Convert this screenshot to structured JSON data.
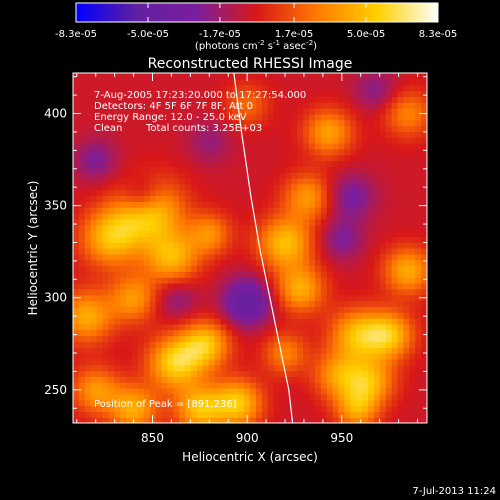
{
  "chart_data": {
    "type": "heatmap",
    "title": "Reconstructed RHESSI Image",
    "xlabel": "Heliocentric X (arcsec)",
    "ylabel": "Heliocentric Y (arcsec)",
    "xlim": [
      808,
      995
    ],
    "ylim": [
      232,
      422
    ],
    "x_ticks": [
      850,
      900,
      950
    ],
    "y_ticks": [
      250,
      300,
      350,
      400
    ],
    "colorbar": {
      "range": [
        -8.3e-05,
        8.3e-05
      ],
      "tick_labels": [
        "-8.3e-05",
        "-5.0e-05",
        "-1.7e-05",
        "1.7e-05",
        "5.0e-05",
        "8.3e-05"
      ],
      "unit_label": "(photons cm",
      "unit_exp1": "-2",
      "unit_mid": " s",
      "unit_exp2": "-1",
      "unit_mid2": " asec",
      "unit_exp3": "-2",
      "unit_end": ")",
      "colors": [
        "#0000ff",
        "#6020a0",
        "#7a1e9e",
        "#d81818",
        "#ff7a00",
        "#ffd000",
        "#ffffff"
      ]
    },
    "annotations": {
      "time_range": "7-Aug-2005 17:23:20.000 to 17:27:54.000",
      "detectors": "Detectors: 4F 5F 6F 7F 8F, Att 0",
      "energy": "Energy Range: 12.0 - 25.0 keV",
      "clean_label": "Clean",
      "total_counts": "Total counts: 3.25E+03",
      "peak": "Position of Peak = [891,236]"
    },
    "limb_curve": [
      [
        893,
        422
      ],
      [
        897,
        390
      ],
      [
        902,
        355
      ],
      [
        907,
        325
      ],
      [
        912,
        300
      ],
      [
        917,
        275
      ],
      [
        922,
        250
      ],
      [
        924,
        232
      ]
    ],
    "grid": false,
    "footer_date": "7-Jul-2013 11:24",
    "blobs": [
      {
        "x": 848,
        "y": 348,
        "v": 1.0,
        "s": 12
      },
      {
        "x": 828,
        "y": 333,
        "v": 0.8,
        "s": 11
      },
      {
        "x": 860,
        "y": 322,
        "v": 0.75,
        "s": 10
      },
      {
        "x": 815,
        "y": 290,
        "v": 0.7,
        "s": 10
      },
      {
        "x": 840,
        "y": 300,
        "v": 0.6,
        "s": 9
      },
      {
        "x": 862,
        "y": 265,
        "v": 0.9,
        "s": 10
      },
      {
        "x": 878,
        "y": 275,
        "v": 0.8,
        "s": 9
      },
      {
        "x": 820,
        "y": 250,
        "v": 0.6,
        "s": 9
      },
      {
        "x": 840,
        "y": 240,
        "v": 0.7,
        "s": 9
      },
      {
        "x": 875,
        "y": 240,
        "v": 0.8,
        "s": 9
      },
      {
        "x": 895,
        "y": 243,
        "v": 0.85,
        "s": 9
      },
      {
        "x": 920,
        "y": 330,
        "v": 0.8,
        "s": 10
      },
      {
        "x": 928,
        "y": 305,
        "v": 0.7,
        "s": 9
      },
      {
        "x": 932,
        "y": 355,
        "v": 0.6,
        "s": 9
      },
      {
        "x": 943,
        "y": 390,
        "v": 0.65,
        "s": 9
      },
      {
        "x": 958,
        "y": 280,
        "v": 0.75,
        "s": 10
      },
      {
        "x": 975,
        "y": 280,
        "v": 0.8,
        "s": 9
      },
      {
        "x": 965,
        "y": 255,
        "v": 0.7,
        "s": 9
      },
      {
        "x": 948,
        "y": 258,
        "v": 0.6,
        "s": 9
      },
      {
        "x": 985,
        "y": 315,
        "v": 0.7,
        "s": 9
      },
      {
        "x": 920,
        "y": 270,
        "v": 0.5,
        "s": 8
      },
      {
        "x": 985,
        "y": 400,
        "v": 0.5,
        "s": 9
      },
      {
        "x": 900,
        "y": 405,
        "v": 0.4,
        "s": 8
      },
      {
        "x": 880,
        "y": 335,
        "v": 0.55,
        "s": 8
      },
      {
        "x": 958,
        "y": 240,
        "v": 0.65,
        "s": 8
      },
      {
        "x": 845,
        "y": 355,
        "v": -0.6,
        "s": 8
      },
      {
        "x": 820,
        "y": 375,
        "v": -0.35,
        "s": 8
      },
      {
        "x": 900,
        "y": 298,
        "v": -0.7,
        "s": 9
      },
      {
        "x": 955,
        "y": 355,
        "v": -0.4,
        "s": 9
      },
      {
        "x": 950,
        "y": 332,
        "v": -0.35,
        "s": 8
      },
      {
        "x": 880,
        "y": 385,
        "v": -0.25,
        "s": 8
      },
      {
        "x": 968,
        "y": 413,
        "v": -0.3,
        "s": 8
      },
      {
        "x": 862,
        "y": 300,
        "v": -0.3,
        "s": 8
      }
    ]
  }
}
